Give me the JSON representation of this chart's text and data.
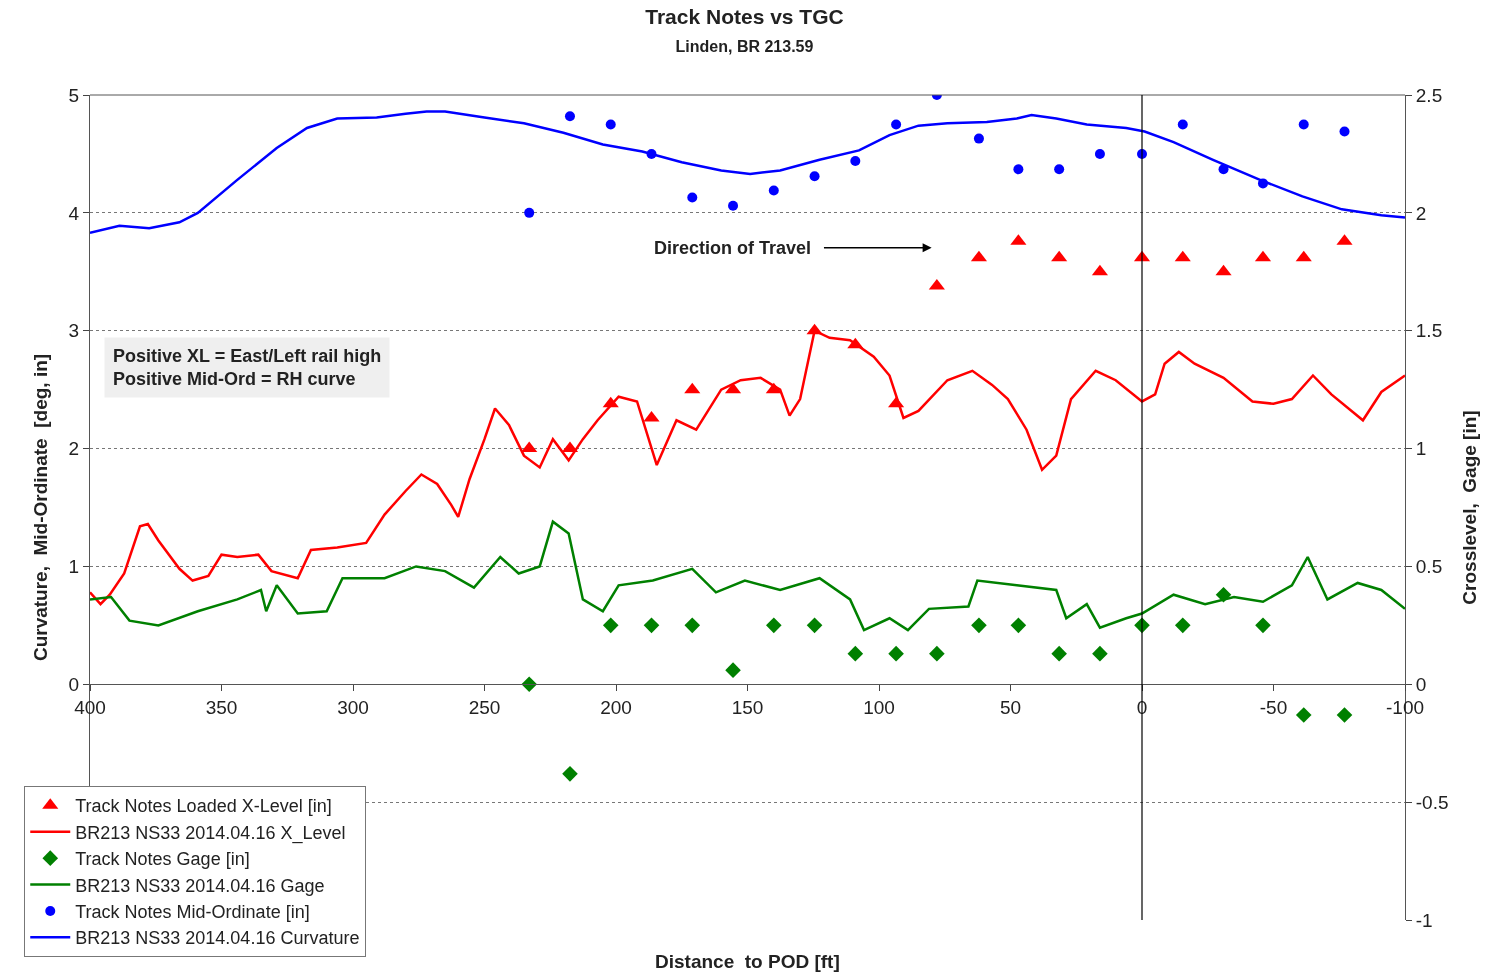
{
  "chart_data": {
    "type": "line",
    "title": "Track Notes vs TGC",
    "subtitle": "Linden, BR 213.59",
    "xlabel": "Distance  to POD [ft]",
    "ylabel": "Curvature,  Mid-Ordinate  [deg, in]",
    "y2label": "Crosslevel,  Gage [in]",
    "xlim": [
      400,
      -100
    ],
    "xticks": [
      400,
      350,
      300,
      250,
      200,
      150,
      100,
      50,
      0,
      -50,
      -100
    ],
    "ylim": [
      -2,
      5
    ],
    "yticks": [
      0,
      1,
      2,
      3,
      4,
      5
    ],
    "y2lim": [
      -1,
      2.5
    ],
    "y2ticks": [
      -1,
      -0.5,
      0,
      0.5,
      1,
      1.5,
      2,
      2.5
    ],
    "grid": "y",
    "legend": "bottom left",
    "ref_lines": [
      {
        "axis": "x",
        "value": 0,
        "color": "#000000",
        "line_style": "solid"
      }
    ],
    "annotations": [
      "Direction of Travel",
      "Positive XL = East/Left rail high\nPositive Mid-Ord = RH curve"
    ],
    "series": [
      {
        "name": "Track Notes Loaded X-Level [in]",
        "type": "scatter",
        "marker": "triangle",
        "axis": "y2",
        "color": "#ff0000",
        "x": [
          233,
          217.5,
          202,
          186.5,
          171,
          155.5,
          140,
          124.5,
          109,
          93.5,
          78,
          62,
          47,
          31.5,
          16,
          0,
          -15.5,
          -31,
          -46,
          -61.5,
          -77
        ],
        "values": [
          1.0,
          1.0,
          1.19,
          1.13,
          1.25,
          1.25,
          1.25,
          1.5,
          1.44,
          1.19,
          1.69,
          1.81,
          1.88,
          1.81,
          1.75,
          1.81,
          1.81,
          1.75,
          1.81,
          1.81,
          1.88
        ]
      },
      {
        "name": "BR213 NS33 2014.04.16 X_Level",
        "marker": "none",
        "axis": "y2",
        "color": "#ff0000",
        "x": [
          400,
          396,
          392.5,
          387,
          381,
          378,
          374,
          366,
          361,
          355,
          350,
          344,
          336,
          331,
          321,
          316,
          306,
          295,
          288,
          280,
          274,
          268,
          262.6,
          260,
          255.7,
          250,
          246,
          240.7,
          235,
          229,
          224,
          218,
          212.6,
          207,
          199,
          192,
          184.5,
          177,
          169.5,
          160,
          152.6,
          145,
          137.6,
          134,
          130,
          124.5,
          118.8,
          111,
          102,
          96,
          90.7,
          85,
          74,
          64.5,
          57,
          51,
          43.9,
          38,
          32.6,
          27,
          17.6,
          10,
          0,
          -5,
          -8.6,
          -14,
          -20,
          -31,
          -42,
          -50,
          -57,
          -65,
          -72,
          -84,
          -91,
          -100
        ],
        "values": [
          0.39,
          0.34,
          0.38,
          0.47,
          0.67,
          0.68,
          0.61,
          0.49,
          0.44,
          0.46,
          0.55,
          0.54,
          0.55,
          0.48,
          0.45,
          0.57,
          0.58,
          0.6,
          0.72,
          0.82,
          0.89,
          0.85,
          0.76,
          0.71,
          0.87,
          1.04,
          1.17,
          1.1,
          0.97,
          0.92,
          1.04,
          0.95,
          1.04,
          1.12,
          1.22,
          1.2,
          0.93,
          1.12,
          1.08,
          1.25,
          1.29,
          1.3,
          1.25,
          1.14,
          1.21,
          1.5,
          1.47,
          1.46,
          1.39,
          1.31,
          1.13,
          1.16,
          1.29,
          1.33,
          1.27,
          1.21,
          1.08,
          0.91,
          0.97,
          1.21,
          1.33,
          1.29,
          1.2,
          1.23,
          1.36,
          1.41,
          1.36,
          1.3,
          1.2,
          1.19,
          1.21,
          1.31,
          1.23,
          1.12,
          1.24,
          1.31
        ]
      },
      {
        "name": "Track Notes Gage [in]",
        "type": "scatter",
        "marker": "diamond",
        "axis": "y2",
        "color": "#008000",
        "x": [
          233,
          217.5,
          202,
          186.5,
          171,
          155.5,
          140,
          124.5,
          109,
          93.5,
          78,
          62,
          47,
          31.5,
          16,
          0,
          -15.5,
          -31,
          -46,
          -61.5,
          -77
        ],
        "values": [
          0,
          -0.38,
          0.25,
          0.25,
          0.25,
          0.06,
          0.25,
          0.25,
          0.13,
          0.13,
          0.13,
          0.25,
          0.25,
          0.13,
          0.13,
          0.25,
          0.25,
          0.38,
          0.25,
          -0.13,
          -0.13
        ]
      },
      {
        "name": "BR213 NS33 2014.04.16 Gage",
        "marker": "none",
        "axis": "y2",
        "color": "#008000",
        "x": [
          400,
          392,
          385,
          374,
          359,
          344,
          335,
          333,
          329,
          321,
          310,
          304,
          288,
          276,
          265,
          254,
          244,
          237,
          229,
          224,
          218,
          212.6,
          205,
          199,
          186,
          171,
          162,
          151,
          137.6,
          122.6,
          111,
          105.7,
          96,
          89,
          81,
          66,
          62.6,
          47.6,
          32.6,
          28.8,
          21,
          16,
          6,
          0,
          -12,
          -24,
          -35,
          -46,
          -57,
          -63,
          -70.5,
          -82,
          -91,
          -100
        ],
        "values": [
          0.36,
          0.37,
          0.27,
          0.25,
          0.31,
          0.36,
          0.4,
          0.31,
          0.42,
          0.3,
          0.31,
          0.45,
          0.45,
          0.5,
          0.48,
          0.41,
          0.54,
          0.47,
          0.5,
          0.69,
          0.64,
          0.36,
          0.31,
          0.42,
          0.44,
          0.49,
          0.39,
          0.44,
          0.4,
          0.45,
          0.36,
          0.23,
          0.28,
          0.23,
          0.32,
          0.33,
          0.44,
          0.42,
          0.4,
          0.28,
          0.34,
          0.24,
          0.28,
          0.3,
          0.38,
          0.34,
          0.37,
          0.35,
          0.42,
          0.54,
          0.36,
          0.43,
          0.4,
          0.32
        ]
      },
      {
        "name": "Track Notes Mid-Ordinate [in]",
        "type": "scatter",
        "marker": "circle",
        "color": "#0000ff",
        "x": [
          233,
          217.5,
          202,
          186.5,
          171,
          155.5,
          140,
          124.5,
          109,
          93.5,
          78,
          62,
          47,
          31.5,
          16,
          0,
          -15.5,
          -31,
          -46,
          -61.5,
          -77
        ],
        "values": [
          4.0,
          4.82,
          4.75,
          4.5,
          4.13,
          4.06,
          4.19,
          4.31,
          4.44,
          4.75,
          5.0,
          4.63,
          4.37,
          4.37,
          4.5,
          4.5,
          4.75,
          4.37,
          4.25,
          4.75,
          4.69
        ]
      },
      {
        "name": "BR213 NS33 2014.04.16 Curvature",
        "marker": "none",
        "color": "#0000ff",
        "x": [
          400,
          388.8,
          377.5,
          366,
          359,
          344,
          329,
          317.5,
          306,
          291,
          280,
          272,
          265,
          250,
          235,
          220,
          205,
          190,
          175,
          160,
          149,
          137.6,
          122.6,
          107.6,
          96,
          85,
          74,
          59,
          47.6,
          42,
          32.6,
          21,
          6,
          -1,
          -12,
          -27,
          -46,
          -61,
          -76,
          -91,
          -100
        ],
        "values": [
          3.83,
          3.89,
          3.87,
          3.92,
          4.0,
          4.28,
          4.55,
          4.72,
          4.8,
          4.81,
          4.84,
          4.86,
          4.86,
          4.81,
          4.76,
          4.68,
          4.58,
          4.52,
          4.43,
          4.36,
          4.33,
          4.36,
          4.45,
          4.53,
          4.66,
          4.74,
          4.76,
          4.77,
          4.8,
          4.83,
          4.8,
          4.75,
          4.72,
          4.69,
          4.6,
          4.45,
          4.27,
          4.14,
          4.03,
          3.98,
          3.96
        ]
      }
    ]
  }
}
